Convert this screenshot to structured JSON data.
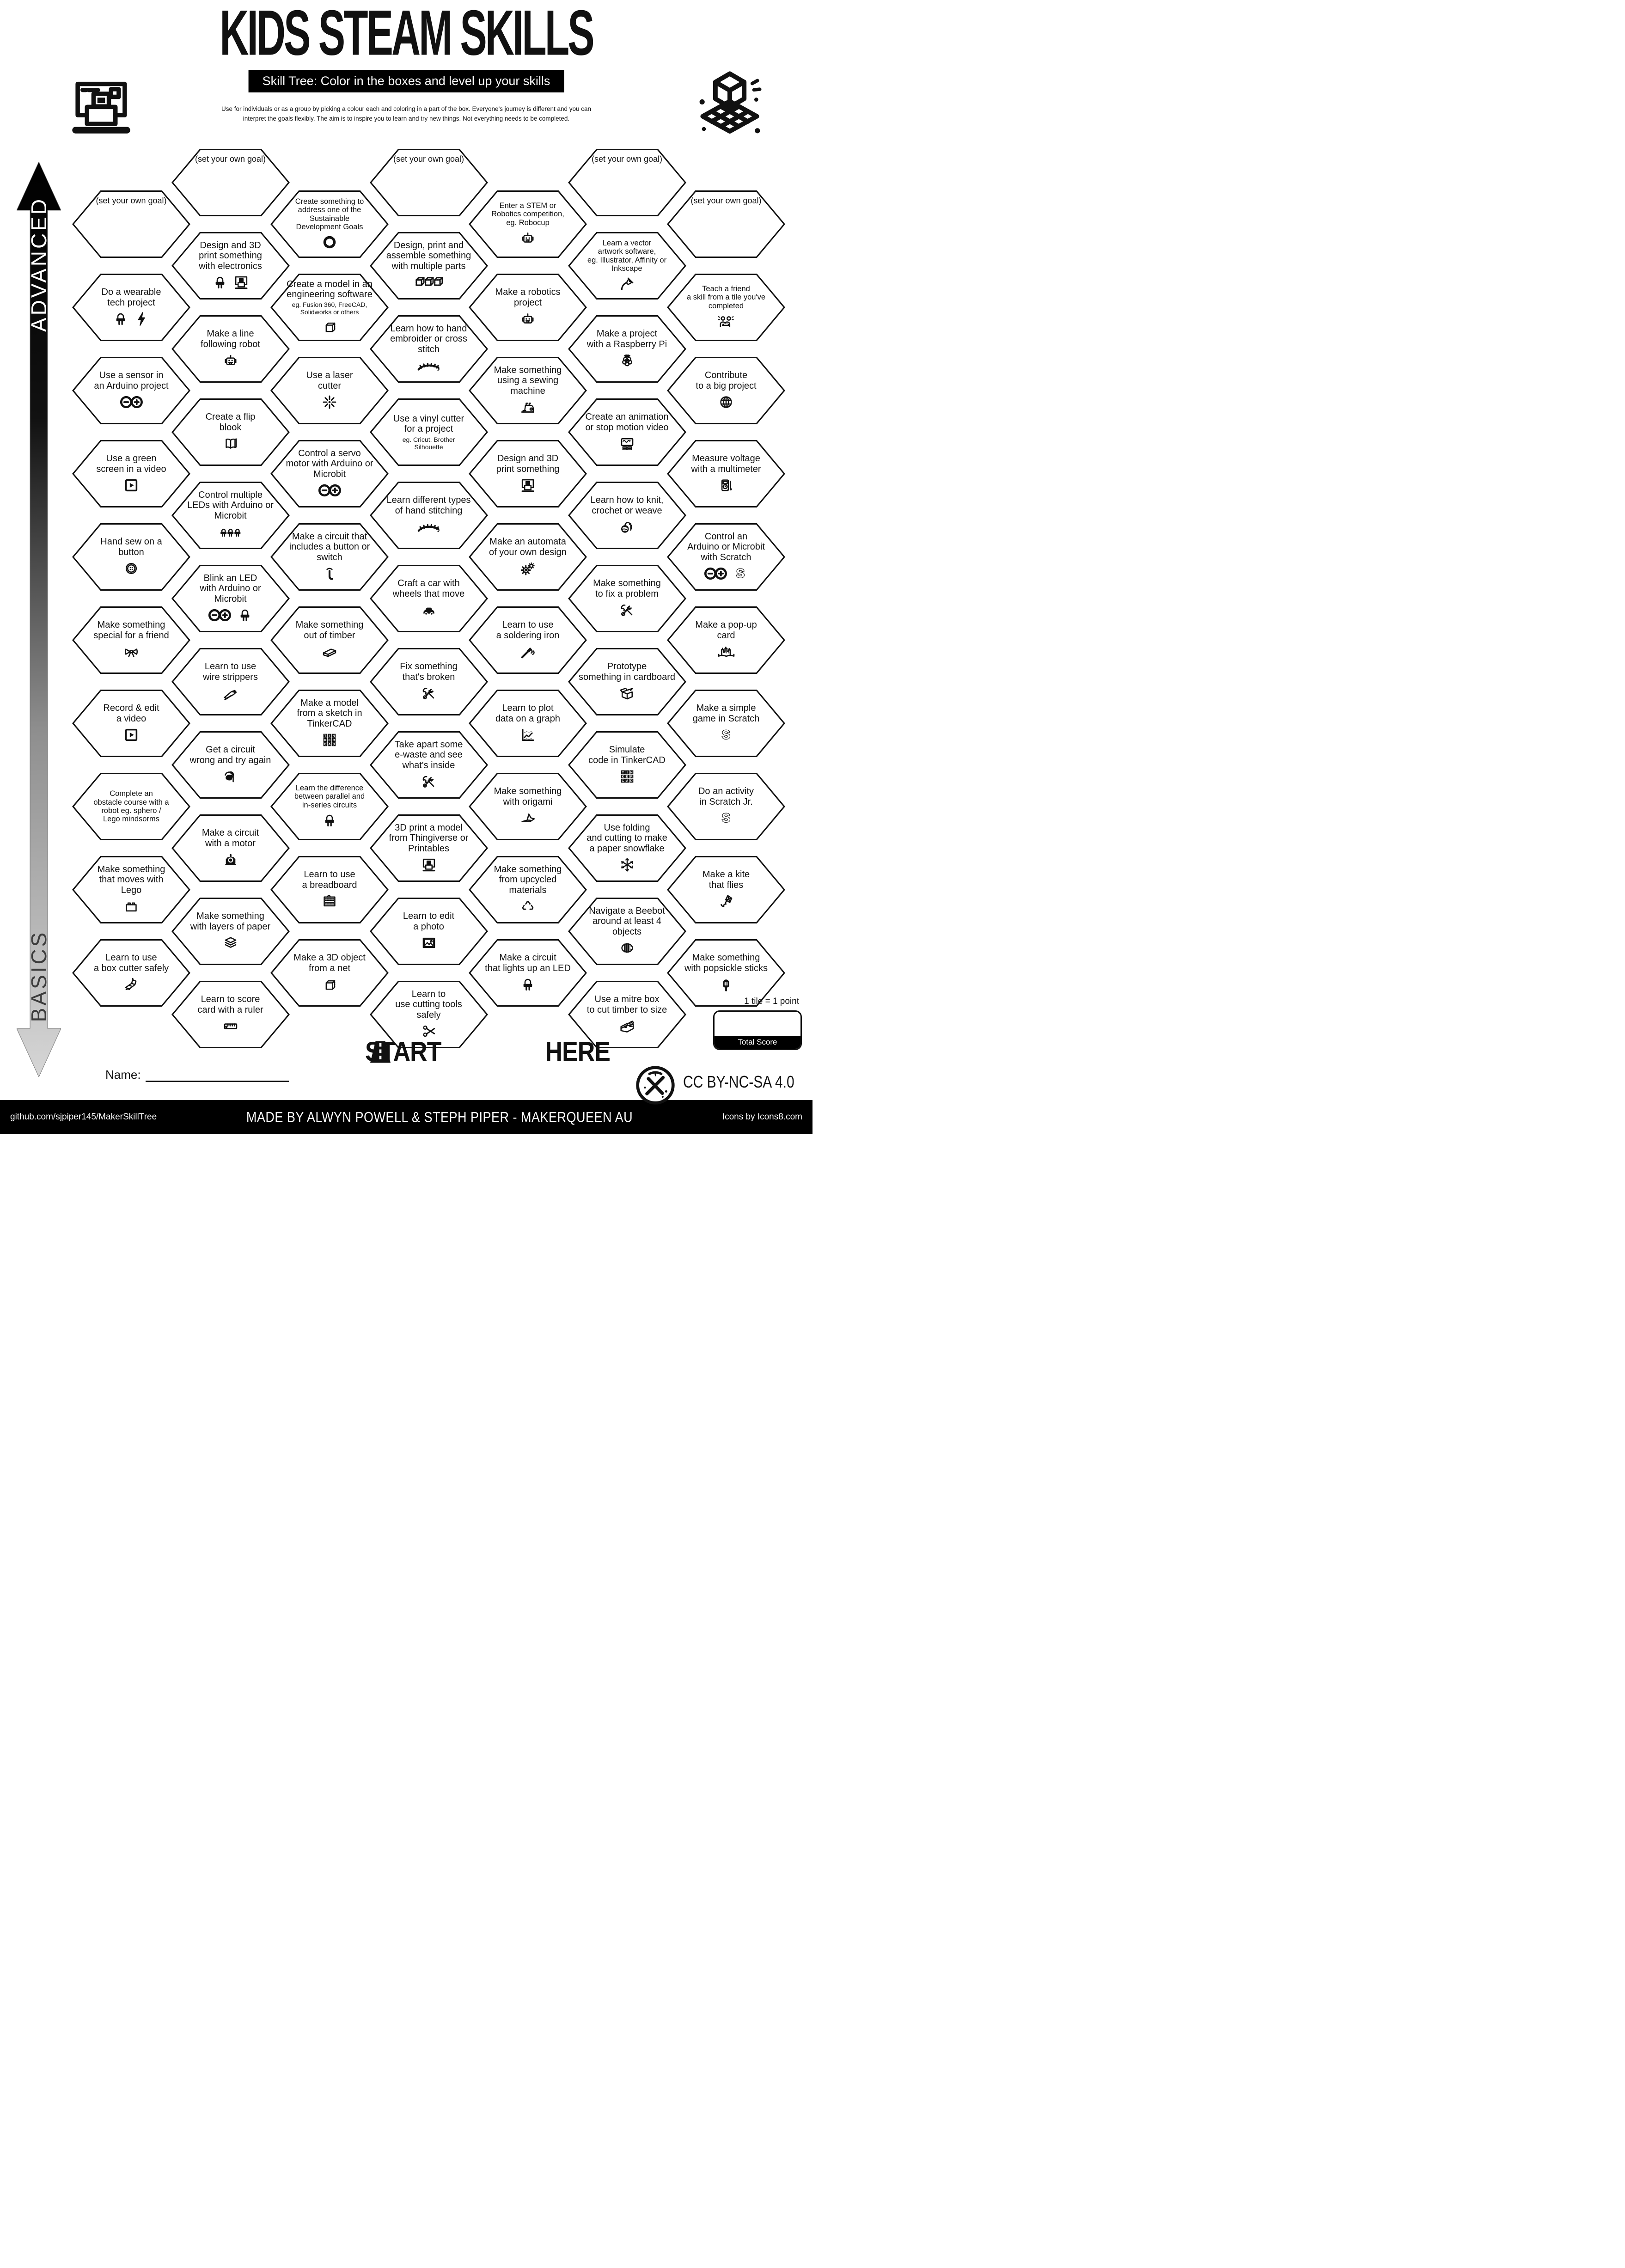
{
  "header": {
    "title": "KIDS STEAM SKILLS",
    "subtitle": "Skill Tree:  Color in the boxes and level up your skills",
    "description": "Use for individuals or as a group by picking a colour each and coloring in a part of the box.  Everyone's journey is different and you can\ninterpret the goals flexibly.  The aim is to inspire you to learn and try new things. Not everything needs to be completed."
  },
  "sidebar": {
    "top_label": "ADVANCED",
    "bottom_label": "BASICS"
  },
  "start": {
    "start_label": "START",
    "here_label": "HERE"
  },
  "name": {
    "label": "Name:"
  },
  "score": {
    "note": "1 tile = 1 point",
    "label": "Total Score"
  },
  "license": {
    "label": "CC BY-NC-SA 4.0"
  },
  "footer": {
    "left": "github.com/sjpiper145/MakerSkillTree",
    "center": "MADE BY ALWYN POWELL & STEPH PIPER  -  MAKERQUEEN AU",
    "right": "Icons by Icons8.com"
  },
  "colors": {
    "ink": "#111111",
    "bar": "#000000",
    "paper": "#ffffff"
  },
  "board": {
    "columns": [
      {
        "offset": "low",
        "tiles": [
          {
            "t": "(set your own goal)",
            "goal": true
          },
          {
            "t": "Do a wearable\ntech project",
            "icons": [
              "led",
              "bolt"
            ]
          },
          {
            "t": "Use a sensor in\nan Arduino project",
            "icons": [
              "arduino"
            ]
          },
          {
            "t": "Use a green\nscreen in a video",
            "icons": [
              "play"
            ]
          },
          {
            "t": "Hand sew on a\nbutton",
            "icons": [
              "button"
            ]
          },
          {
            "t": "Make something\nspecial for a friend",
            "icons": [
              "bow"
            ]
          },
          {
            "t": "Record & edit\na video",
            "icons": [
              "play"
            ]
          },
          {
            "t": "Complete an\nobstacle course with a\nrobot eg. sphero /\nLego mindsorms",
            "size": "s"
          },
          {
            "t": "Make something\nthat moves with\nLego",
            "icons": [
              "lego"
            ]
          },
          {
            "t": "Learn to use\na box cutter safely",
            "icons": [
              "cutter"
            ]
          }
        ]
      },
      {
        "offset": "high",
        "tiles": [
          {
            "t": "(set your own goal)",
            "goal": true
          },
          {
            "t": "Design and 3D\nprint something\nwith electronics",
            "icons": [
              "led",
              "printer3d"
            ]
          },
          {
            "t": "Make a line\nfollowing robot",
            "icons": [
              "robot"
            ]
          },
          {
            "t": "Create a flip\nblook",
            "icons": [
              "book"
            ]
          },
          {
            "t": "Control multiple\nLEDs with Arduino or\nMicrobit",
            "icons": [
              "leds3"
            ]
          },
          {
            "t": "Blink an LED\nwith Arduino or\nMicrobit",
            "icons": [
              "arduino",
              "led"
            ]
          },
          {
            "t": "Learn to use\nwire strippers",
            "icons": [
              "strippers"
            ]
          },
          {
            "t": "Get a circuit\nwrong and try again",
            "icons": [
              "facepalm"
            ]
          },
          {
            "t": "Make a circuit\nwith a motor",
            "icons": [
              "motor"
            ]
          },
          {
            "t": "Make something\nwith layers of paper",
            "icons": [
              "layers"
            ]
          },
          {
            "t": "Learn to score\ncard with a ruler",
            "icons": [
              "ruler"
            ]
          }
        ]
      },
      {
        "offset": "low",
        "tiles": [
          {
            "t": "Create something to\naddress one of the Sustainable\nDevelopment Goals",
            "size": "s",
            "icons": [
              "sdg"
            ]
          },
          {
            "t": "Create a model in an\nengineering software",
            "s": "eg. Fusion 360, FreeCAD,\nSolidworks or others",
            "icons": [
              "cube"
            ]
          },
          {
            "t": "Use a laser\ncutter",
            "icons": [
              "laser"
            ]
          },
          {
            "t": "Control a servo\nmotor with Arduino or\nMicrobit",
            "icons": [
              "arduino"
            ]
          },
          {
            "t": "Make a circuit that\nincludes a button or\nswitch",
            "icons": [
              "press"
            ]
          },
          {
            "t": "Make something\nout of timber",
            "icons": [
              "timber"
            ]
          },
          {
            "t": "Make a model\nfrom a sketch in\nTinkerCAD",
            "icons": [
              "tinkercad"
            ]
          },
          {
            "t": "Learn the difference\nbetween parallel and\nin-series circuits",
            "size": "s",
            "icons": [
              "led"
            ]
          },
          {
            "t": "Learn to use\na breadboard",
            "icons": [
              "breadboard"
            ]
          },
          {
            "t": "Make a 3D object\nfrom a net",
            "icons": [
              "cube"
            ]
          }
        ]
      },
      {
        "offset": "high",
        "tiles": [
          {
            "t": "(set your own goal)",
            "goal": true
          },
          {
            "t": "Design, print and\nassemble something\nwith multiple parts",
            "icons": [
              "cubes3"
            ]
          },
          {
            "t": "Learn how to hand\nembroider or cross stitch",
            "icons": [
              "stitch"
            ]
          },
          {
            "t": "Use a vinyl cutter\nfor a project",
            "s": "eg. Cricut, Brother\nSilhouette"
          },
          {
            "t": "Learn different types\nof hand stitching",
            "icons": [
              "stitch"
            ]
          },
          {
            "t": "Craft a car with\nwheels that move",
            "icons": [
              "car"
            ]
          },
          {
            "t": "Fix something\nthat's broken",
            "icons": [
              "tools"
            ]
          },
          {
            "t": "Take apart some\ne-waste and see\nwhat's inside",
            "icons": [
              "tools"
            ]
          },
          {
            "t": "3D print a model\nfrom Thingiverse or\nPrintables",
            "icons": [
              "printer3d"
            ]
          },
          {
            "t": "Learn to edit\na photo",
            "icons": [
              "photo"
            ]
          },
          {
            "t": "Learn to\nuse cutting tools\nsafely",
            "icons": [
              "scissors"
            ]
          }
        ]
      },
      {
        "offset": "low",
        "tiles": [
          {
            "t": "Enter a STEM or\nRobotics competition,\neg. Robocup",
            "size": "s",
            "icons": [
              "robot"
            ]
          },
          {
            "t": "Make a robotics\nproject",
            "icons": [
              "robot"
            ]
          },
          {
            "t": "Make something\nusing a sewing\nmachine",
            "icons": [
              "sewing"
            ]
          },
          {
            "t": "Design and 3D\nprint something",
            "icons": [
              "printer3d"
            ]
          },
          {
            "t": "Make an automata\nof your own design",
            "icons": [
              "gears"
            ]
          },
          {
            "t": "Learn to use\na soldering iron",
            "icons": [
              "solder"
            ]
          },
          {
            "t": "Learn to plot\ndata on a graph",
            "icons": [
              "graph"
            ]
          },
          {
            "t": "Make something\nwith origami",
            "icons": [
              "origami"
            ]
          },
          {
            "t": "Make something\nfrom upcycled\nmaterials",
            "icons": [
              "recycle"
            ]
          },
          {
            "t": "Make a circuit\nthat lights up an LED",
            "icons": [
              "led"
            ]
          }
        ]
      },
      {
        "offset": "high",
        "tiles": [
          {
            "t": "(set your own goal)",
            "goal": true
          },
          {
            "t": "Learn a vector\nartwork software,\neg. Illustrator, Affinity or\nInkscape",
            "size": "s",
            "icons": [
              "pen"
            ]
          },
          {
            "t": "Make a project\nwith a Raspberry Pi",
            "icons": [
              "raspberry"
            ]
          },
          {
            "t": "Create an animation\nor stop motion video",
            "icons": [
              "screen"
            ]
          },
          {
            "t": "Learn how to knit,\ncrochet or weave",
            "icons": [
              "yarn"
            ]
          },
          {
            "t": "Make something\nto fix a problem",
            "icons": [
              "tools"
            ]
          },
          {
            "t": "Prototype\nsomething in cardboard",
            "icons": [
              "box"
            ]
          },
          {
            "t": "Simulate\ncode in TinkerCAD",
            "icons": [
              "tinkercad"
            ]
          },
          {
            "t": "Use folding\nand cutting to make\na paper snowflake",
            "icons": [
              "snowflake"
            ]
          },
          {
            "t": "Navigate a Beebot\naround at least 4\nobjects",
            "icons": [
              "beebot"
            ]
          },
          {
            "t": "Use a mitre box\nto cut timber to size",
            "icons": [
              "mitre"
            ]
          }
        ]
      },
      {
        "offset": "low",
        "tiles": [
          {
            "t": "(set your own goal)",
            "goal": true
          },
          {
            "t": "Teach a friend\na skill from a tile you've\ncompleted",
            "size": "s",
            "icons": [
              "friends"
            ]
          },
          {
            "t": "Contribute\nto a big project",
            "icons": [
              "globe"
            ]
          },
          {
            "t": "Measure voltage\nwith a multimeter",
            "icons": [
              "multimeter"
            ]
          },
          {
            "t": "Control an\nArduino or Microbit\nwith Scratch",
            "icons": [
              "arduino",
              "scratch"
            ]
          },
          {
            "t": "Make a pop-up\ncard",
            "icons": [
              "popup"
            ]
          },
          {
            "t": "Make a simple\ngame in Scratch",
            "icons": [
              "scratch"
            ]
          },
          {
            "t": "Do an activity\nin Scratch Jr.",
            "icons": [
              "scratch"
            ]
          },
          {
            "t": "Make a kite\nthat flies",
            "icons": [
              "kite"
            ]
          },
          {
            "t": "Make something\nwith popsickle sticks",
            "icons": [
              "popsicle"
            ]
          }
        ]
      }
    ]
  }
}
